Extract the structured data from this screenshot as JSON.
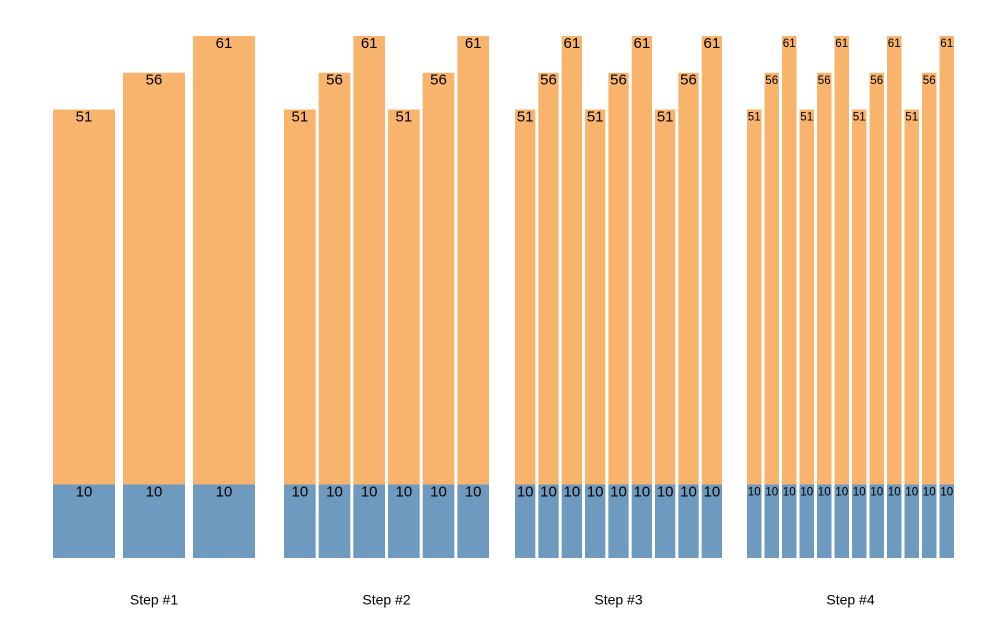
{
  "chart_data": [
    {
      "type": "bar",
      "stacked": true,
      "xlabel": "Step #1",
      "series": [
        {
          "color": "#6f9abf",
          "values": [
            10,
            10,
            10
          ]
        },
        {
          "color": "#f8b46c",
          "values": [
            51,
            56,
            61
          ]
        }
      ]
    },
    {
      "type": "bar",
      "stacked": true,
      "xlabel": "Step #2",
      "series": [
        {
          "color": "#6f9abf",
          "values": [
            10,
            10,
            10,
            10,
            10,
            10
          ]
        },
        {
          "color": "#f8b46c",
          "values": [
            51,
            56,
            61,
            51,
            56,
            61
          ]
        }
      ]
    },
    {
      "type": "bar",
      "stacked": true,
      "xlabel": "Step #3",
      "series": [
        {
          "color": "#6f9abf",
          "values": [
            10,
            10,
            10,
            10,
            10,
            10,
            10,
            10,
            10
          ]
        },
        {
          "color": "#f8b46c",
          "values": [
            51,
            56,
            61,
            51,
            56,
            61,
            51,
            56,
            61
          ]
        }
      ]
    },
    {
      "type": "bar",
      "stacked": true,
      "xlabel": "Step #4",
      "series": [
        {
          "color": "#6f9abf",
          "values": [
            10,
            10,
            10,
            10,
            10,
            10,
            10,
            10,
            10,
            10,
            10,
            10
          ]
        },
        {
          "color": "#f8b46c",
          "values": [
            51,
            56,
            61,
            51,
            56,
            61,
            51,
            56,
            61,
            51,
            56,
            61
          ]
        }
      ]
    }
  ]
}
